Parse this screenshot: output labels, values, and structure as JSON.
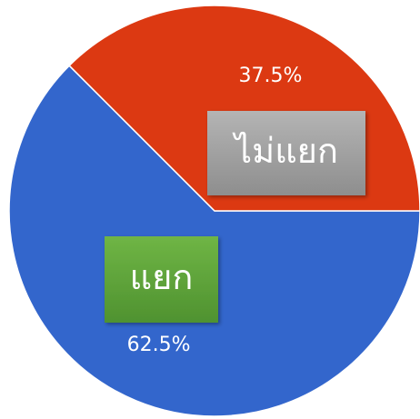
{
  "chart_data": {
    "type": "pie",
    "categories": [
      "แยก",
      "ไม่แยก"
    ],
    "values": [
      62.5,
      37.5
    ],
    "value_labels": [
      "62.5%",
      "37.5%"
    ],
    "colors": [
      "#3366cc",
      "#dc3912"
    ]
  }
}
